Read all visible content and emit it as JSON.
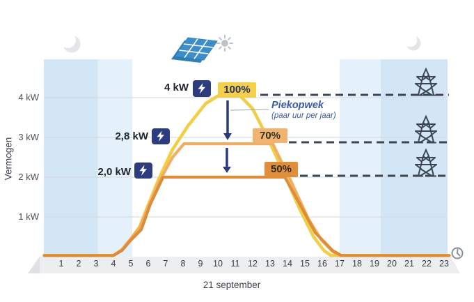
{
  "y_axis": {
    "label": "Vermogen",
    "ticks": [
      "4 kW",
      "3 kW",
      "2 kW",
      "1 kW"
    ],
    "tick_kw": [
      4,
      3,
      2,
      1
    ]
  },
  "x_axis": {
    "hours": [
      "1",
      "2",
      "3",
      "4",
      "5",
      "6",
      "7",
      "8",
      "9",
      "10",
      "11",
      "12",
      "13",
      "14",
      "15",
      "16",
      "17",
      "18",
      "19",
      "20",
      "21",
      "22",
      "23"
    ],
    "date_label": "21 september"
  },
  "callouts": {
    "p100": {
      "kw": "4 kW",
      "pct": "100%"
    },
    "p70": {
      "kw": "2,8 kW",
      "pct": "70%"
    },
    "p50": {
      "kw": "2,0 kW",
      "pct": "50%"
    }
  },
  "annotation": {
    "title": "Piekopwek",
    "subtitle": "(paar uur per jaar)"
  },
  "icons": [
    "crescent-moon",
    "solar-panel",
    "sun",
    "lightning-bolt",
    "power-pylon",
    "clock"
  ],
  "colors": {
    "yellow": "#F2CE47",
    "orange_70": "#EFAE63",
    "orange_50": "#DD8C38",
    "navy": "#2B3B7C",
    "annotation_blue": "#3A59A4",
    "slate": "#3C4654",
    "night_deep": "#D3E6F6",
    "night_light": "#E4F0FA",
    "grid": "#D3D6DA"
  },
  "chart_data": {
    "type": "line",
    "title": "",
    "xlabel": "21 september",
    "ylabel": "Vermogen",
    "x_unit": "uur",
    "xlim": [
      0,
      23.3
    ],
    "ylim": [
      0,
      4.95
    ],
    "grid": "horizontal",
    "series": [
      {
        "name": "opwek 100% (4 kW piek)",
        "color": "#F2CE47",
        "points": [
          [
            0.02,
            0.03
          ],
          [
            4,
            0.03
          ],
          [
            4.5,
            0.18
          ],
          [
            5,
            0.45
          ],
          [
            5.5,
            0.75
          ],
          [
            6,
            1.3
          ],
          [
            6.6,
            1.95
          ],
          [
            7.4,
            2.7
          ],
          [
            8.3,
            3.3
          ],
          [
            9.3,
            3.85
          ],
          [
            10.1,
            4.07
          ],
          [
            10.6,
            4.12
          ],
          [
            11.2,
            4.08
          ],
          [
            12,
            3.72
          ],
          [
            12.9,
            2.95
          ],
          [
            13.8,
            2.1
          ],
          [
            14.7,
            1.2
          ],
          [
            15.5,
            0.5
          ],
          [
            16.1,
            0.15
          ],
          [
            16.5,
            0.03
          ],
          [
            23.28,
            0.03
          ]
        ]
      },
      {
        "name": "begrensd 70% (2,8 kW)",
        "color": "#EFAE63",
        "points": [
          [
            0.02,
            0.03
          ],
          [
            4,
            0.03
          ],
          [
            4.5,
            0.18
          ],
          [
            5,
            0.45
          ],
          [
            5.5,
            0.72
          ],
          [
            6,
            1.25
          ],
          [
            6.7,
            1.95
          ],
          [
            7.4,
            2.5
          ],
          [
            8.05,
            2.84
          ],
          [
            13.15,
            2.84
          ],
          [
            14.2,
            1.9
          ],
          [
            15.2,
            0.95
          ],
          [
            15.95,
            0.42
          ],
          [
            16.6,
            0.13
          ],
          [
            17,
            0.03
          ],
          [
            23.28,
            0.03
          ]
        ]
      },
      {
        "name": "begrensd 50% (2,0 kW)",
        "color": "#DD8C38",
        "points": [
          [
            0.02,
            0.03
          ],
          [
            4,
            0.03
          ],
          [
            4.5,
            0.16
          ],
          [
            5,
            0.42
          ],
          [
            5.6,
            0.68
          ],
          [
            6.1,
            1.3
          ],
          [
            6.85,
            2.0
          ],
          [
            13.85,
            2.0
          ],
          [
            14.8,
            1.25
          ],
          [
            15.6,
            0.6
          ],
          [
            16.05,
            0.4
          ],
          [
            16.6,
            0.15
          ],
          [
            17.1,
            0.03
          ],
          [
            23.3,
            0.03
          ]
        ]
      }
    ],
    "reference_levels": [
      {
        "pct": "100%",
        "kw": 4.0
      },
      {
        "pct": "70%",
        "kw": 2.8
      },
      {
        "pct": "50%",
        "kw": 2.0
      }
    ],
    "night_shading": [
      {
        "from": 0,
        "to": 3.1,
        "tone": "deep"
      },
      {
        "from": 3.1,
        "to": 5.08,
        "tone": "light"
      },
      {
        "from": 17,
        "to": 19.35,
        "tone": "light"
      },
      {
        "from": 19.35,
        "to": 23.2,
        "tone": "deep"
      }
    ]
  }
}
